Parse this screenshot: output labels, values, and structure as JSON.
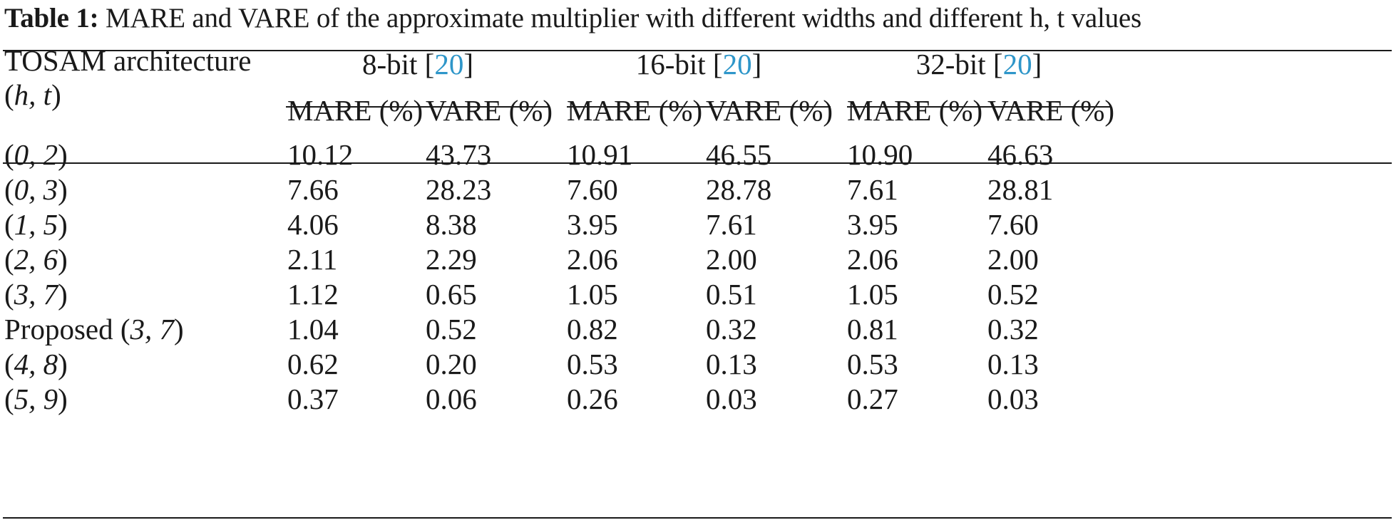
{
  "caption": {
    "label": "Table 1:",
    "text": " MARE and VARE of the approximate multiplier with different widths and different h, t values"
  },
  "header": {
    "arch_label": "TOSAM architecture",
    "arch_params_open": "(",
    "arch_h": "h",
    "arch_sep": ", ",
    "arch_t": "t",
    "arch_params_close": ")",
    "groups": [
      {
        "prefix": "8-bit [",
        "ref": "20",
        "suffix": "]"
      },
      {
        "prefix": "16-bit [",
        "ref": "20",
        "suffix": "]"
      },
      {
        "prefix": "32-bit [",
        "ref": "20",
        "suffix": "]"
      }
    ],
    "subcols": [
      "MARE (%)",
      "VARE (%)",
      "MARE (%)",
      "VARE (%)",
      "MARE (%)",
      "VARE (%)"
    ]
  },
  "rows": [
    {
      "prefix": "",
      "h": "0",
      "t": "2",
      "values": [
        "10.12",
        "43.73",
        "10.91",
        "46.55",
        "10.90",
        "46.63"
      ]
    },
    {
      "prefix": "",
      "h": "0",
      "t": "3",
      "values": [
        "7.66",
        "28.23",
        "7.60",
        "28.78",
        "7.61",
        "28.81"
      ]
    },
    {
      "prefix": "",
      "h": "1",
      "t": "5",
      "values": [
        "4.06",
        "8.38",
        "3.95",
        "7.61",
        "3.95",
        "7.60"
      ]
    },
    {
      "prefix": "",
      "h": "2",
      "t": "6",
      "values": [
        "2.11",
        "2.29",
        "2.06",
        "2.00",
        "2.06",
        "2.00"
      ]
    },
    {
      "prefix": "",
      "h": "3",
      "t": "7",
      "values": [
        "1.12",
        "0.65",
        "1.05",
        "0.51",
        "1.05",
        "0.52"
      ]
    },
    {
      "prefix": "Proposed ",
      "h": "3",
      "t": "7",
      "values": [
        "1.04",
        "0.52",
        "0.82",
        "0.32",
        "0.81",
        "0.32"
      ]
    },
    {
      "prefix": "",
      "h": "4",
      "t": "8",
      "values": [
        "0.62",
        "0.20",
        "0.53",
        "0.13",
        "0.53",
        "0.13"
      ]
    },
    {
      "prefix": "",
      "h": "5",
      "t": "9",
      "values": [
        "0.37",
        "0.06",
        "0.26",
        "0.03",
        "0.27",
        "0.03"
      ]
    }
  ]
}
